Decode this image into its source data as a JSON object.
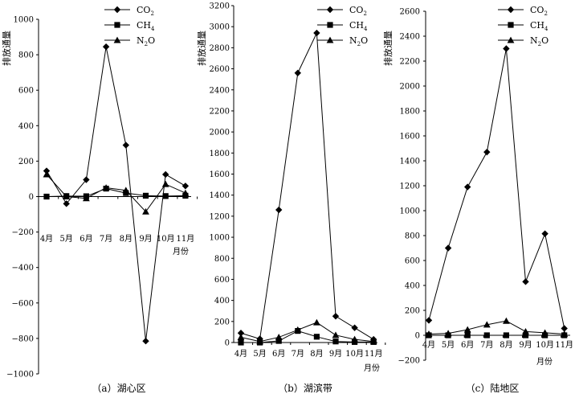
{
  "chart_data": [
    {
      "type": "line",
      "caption": "（a）湖心区",
      "ylabel": "排放通量",
      "xlabel": "月份",
      "categories": [
        "4月",
        "5月",
        "6月",
        "7月",
        "8月",
        "9月",
        "10月",
        "11月"
      ],
      "ylim": [
        -1000,
        1000
      ],
      "yticks": [
        -1000,
        -800,
        -600,
        -400,
        -200,
        0,
        200,
        400,
        600,
        800,
        1000
      ],
      "ytick_labels": [
        "−1000",
        "−800",
        "−600",
        "−400",
        "−200",
        "0",
        "200",
        "400",
        "600",
        "800",
        "1000"
      ],
      "series": [
        {
          "name": "CO2",
          "marker": "diamond",
          "values": [
            145,
            -40,
            95,
            845,
            290,
            -815,
            125,
            60
          ]
        },
        {
          "name": "CH4",
          "marker": "square",
          "values": [
            0,
            3,
            2,
            45,
            20,
            5,
            3,
            5
          ]
        },
        {
          "name": "N2O",
          "marker": "triangle",
          "values": [
            125,
            0,
            -10,
            50,
            35,
            -85,
            70,
            20
          ]
        }
      ],
      "legend": "top-right",
      "grid": false
    },
    {
      "type": "line",
      "caption": "（b）湖滨带",
      "ylabel": "排放通量",
      "xlabel": "月份",
      "categories": [
        "4月",
        "5月",
        "6月",
        "7月",
        "8月",
        "9月",
        "10月",
        "11月"
      ],
      "ylim": [
        0,
        3200
      ],
      "yticks": [
        0,
        200,
        400,
        600,
        800,
        1000,
        1200,
        1400,
        1600,
        1800,
        2000,
        2200,
        2400,
        2600,
        2800,
        3000,
        3200
      ],
      "ytick_labels": [
        "0",
        "200",
        "400",
        "600",
        "800",
        "1000",
        "1200",
        "1400",
        "1600",
        "1800",
        "2000",
        "2200",
        "2400",
        "2600",
        "2800",
        "3000",
        "3200"
      ],
      "series": [
        {
          "name": "CO2",
          "marker": "diamond",
          "values": [
            90,
            35,
            1260,
            2560,
            2940,
            250,
            140,
            30
          ]
        },
        {
          "name": "CH4",
          "marker": "square",
          "values": [
            0,
            0,
            15,
            110,
            55,
            10,
            5,
            5
          ]
        },
        {
          "name": "N2O",
          "marker": "triangle",
          "values": [
            50,
            10,
            50,
            120,
            190,
            70,
            30,
            10
          ]
        }
      ],
      "legend": "top-right",
      "grid": false
    },
    {
      "type": "line",
      "caption": "（c）陆地区",
      "ylabel": "排放通量",
      "xlabel": "月份",
      "categories": [
        "4月",
        "5月",
        "6月",
        "7月",
        "8月",
        "9月",
        "10月",
        "11月"
      ],
      "ylim": [
        -200,
        2600
      ],
      "yticks": [
        -200,
        0,
        200,
        400,
        600,
        800,
        1000,
        1200,
        1400,
        1600,
        1800,
        2000,
        2200,
        2400,
        2600
      ],
      "ytick_labels": [
        "−200",
        "0",
        "200",
        "400",
        "600",
        "800",
        "1000",
        "1200",
        "1400",
        "1600",
        "1800",
        "2000",
        "2200",
        "2400",
        "2600"
      ],
      "series": [
        {
          "name": "CO2",
          "marker": "diamond",
          "values": [
            120,
            700,
            1190,
            1470,
            2300,
            430,
            815,
            55
          ]
        },
        {
          "name": "CH4",
          "marker": "square",
          "values": [
            0,
            0,
            0,
            0,
            0,
            0,
            0,
            0
          ]
        },
        {
          "name": "N2O",
          "marker": "triangle",
          "values": [
            10,
            15,
            45,
            85,
            115,
            30,
            20,
            10
          ]
        }
      ],
      "legend": "top-right",
      "grid": false
    }
  ],
  "legend_labels": {
    "co2": {
      "base": "CO",
      "sub": "2"
    },
    "ch4": {
      "base": "CH",
      "sub": "4"
    },
    "n2o": {
      "base": "N",
      "sub": "2",
      "tail": "O"
    }
  }
}
